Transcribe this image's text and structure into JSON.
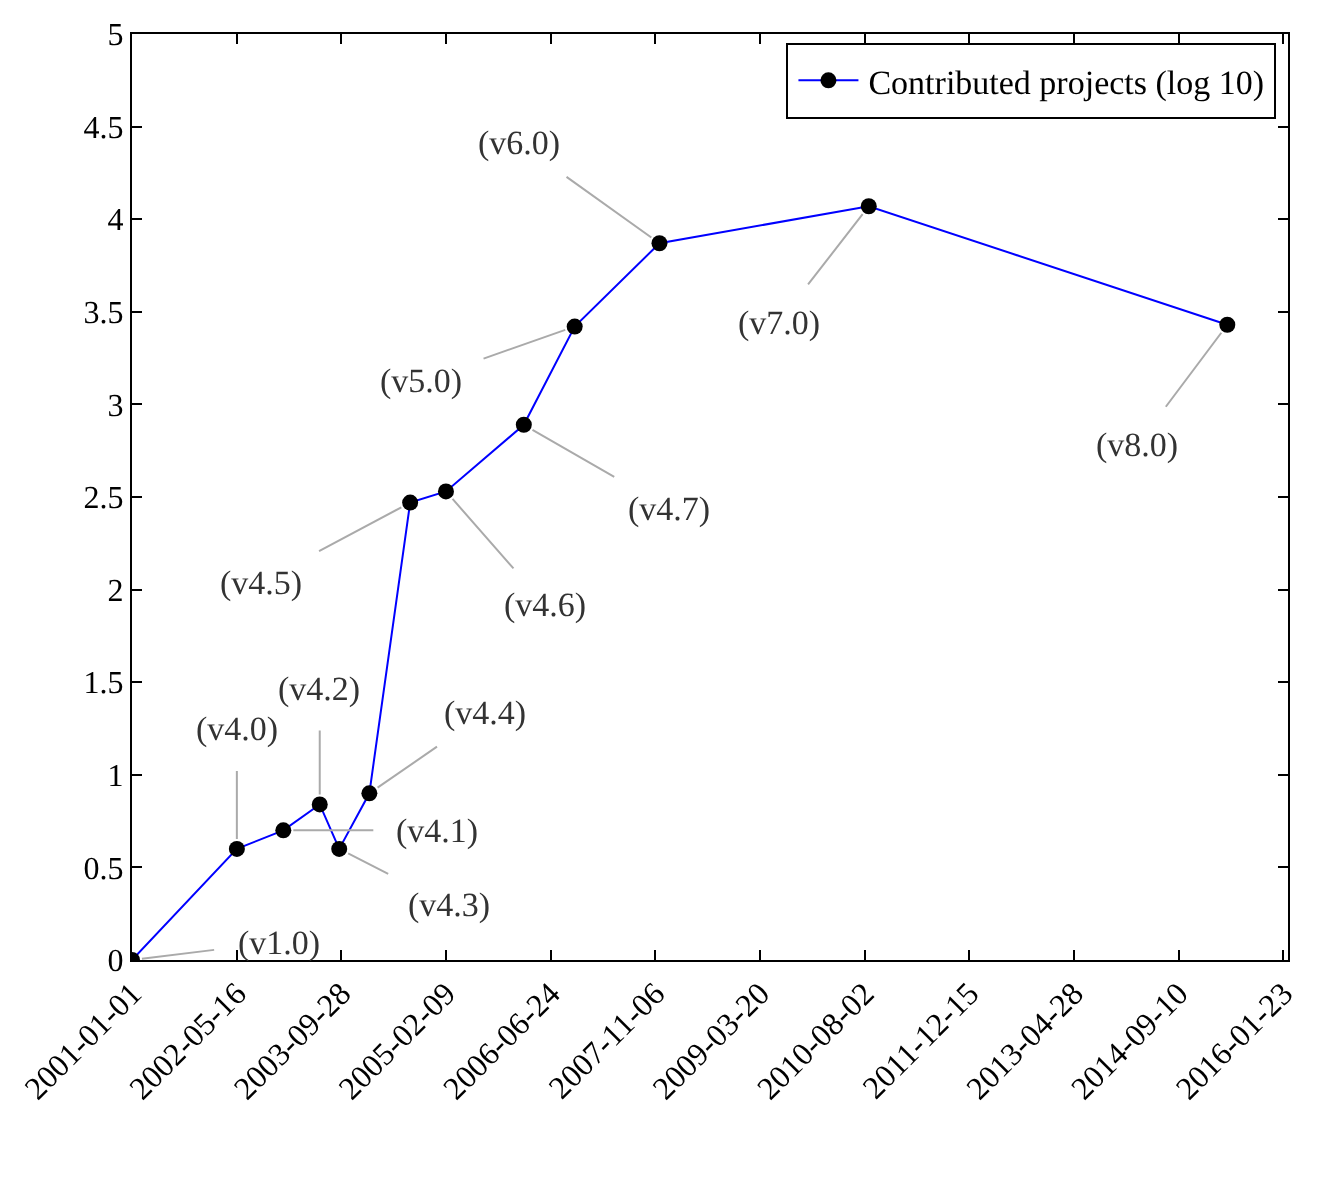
{
  "chart_data": {
    "type": "line",
    "x": [
      "2001-01-01",
      "2002-05-17",
      "2002-12-25",
      "2003-06-17",
      "2003-09-18",
      "2004-02-09",
      "2004-08-22",
      "2005-02-09",
      "2006-02-16",
      "2006-10-17",
      "2007-11-26",
      "2010-08-22",
      "2015-05-01"
    ],
    "series": [
      {
        "name": "Contributed projects (log 10)",
        "color": "#0000ff",
        "colors": [
          "#000000",
          "#000000",
          "#000000",
          "#000000",
          "#000000",
          "#000000",
          "#000000",
          "#000000",
          "#000000",
          "#000000",
          "#000000",
          "#000000",
          "#000000"
        ],
        "values": [
          0,
          0.6,
          0.7,
          0.84,
          0.6,
          0.9,
          2.47,
          2.53,
          2.89,
          3.42,
          3.87,
          4.07,
          3.43
        ]
      }
    ],
    "xlim": [
      "2001-01-01",
      "2016-02-15"
    ],
    "xticks": [
      "2001-01-01",
      "2002-05-16",
      "2003-09-28",
      "2005-02-09",
      "2006-06-24",
      "2007-11-06",
      "2009-03-20",
      "2010-08-02",
      "2011-12-15",
      "2013-04-28",
      "2014-09-10",
      "2016-01-23"
    ],
    "ylim": [
      0,
      5
    ],
    "yticks": [
      0,
      0.5,
      1,
      1.5,
      2,
      2.5,
      3,
      3.5,
      4,
      4.5,
      5
    ],
    "annotations": [
      {
        "text": "(v1.0)",
        "x": "2001-01-01",
        "y": 0
      },
      {
        "text": "(v4.0)",
        "x": "2002-05-17",
        "y": 0.6
      },
      {
        "text": "(v4.1)",
        "x": "2002-12-25",
        "y": 0.7
      },
      {
        "text": "(v4.2)",
        "x": "2003-06-17",
        "y": 0.84
      },
      {
        "text": "(v4.3)",
        "x": "2003-09-18",
        "y": 0.6
      },
      {
        "text": "(v4.4)",
        "x": "2004-02-09",
        "y": 0.9
      },
      {
        "text": "(v4.5)",
        "x": "2004-08-22",
        "y": 2.47
      },
      {
        "text": "(v4.6)",
        "x": "2005-02-09",
        "y": 2.53
      },
      {
        "text": "(v4.7)",
        "x": "2006-02-16",
        "y": 2.89
      },
      {
        "text": "(v5.0)",
        "x": "2006-10-17",
        "y": 3.42
      },
      {
        "text": "(v6.0)",
        "x": "2007-11-26",
        "y": 3.87
      },
      {
        "text": "(v7.0)",
        "x": "2010-08-22",
        "y": 4.07
      },
      {
        "text": "(v8.0)",
        "x": "2015-05-01",
        "y": 3.43
      }
    ],
    "legend": "top right",
    "marker": "circle",
    "line_style": "solid"
  }
}
